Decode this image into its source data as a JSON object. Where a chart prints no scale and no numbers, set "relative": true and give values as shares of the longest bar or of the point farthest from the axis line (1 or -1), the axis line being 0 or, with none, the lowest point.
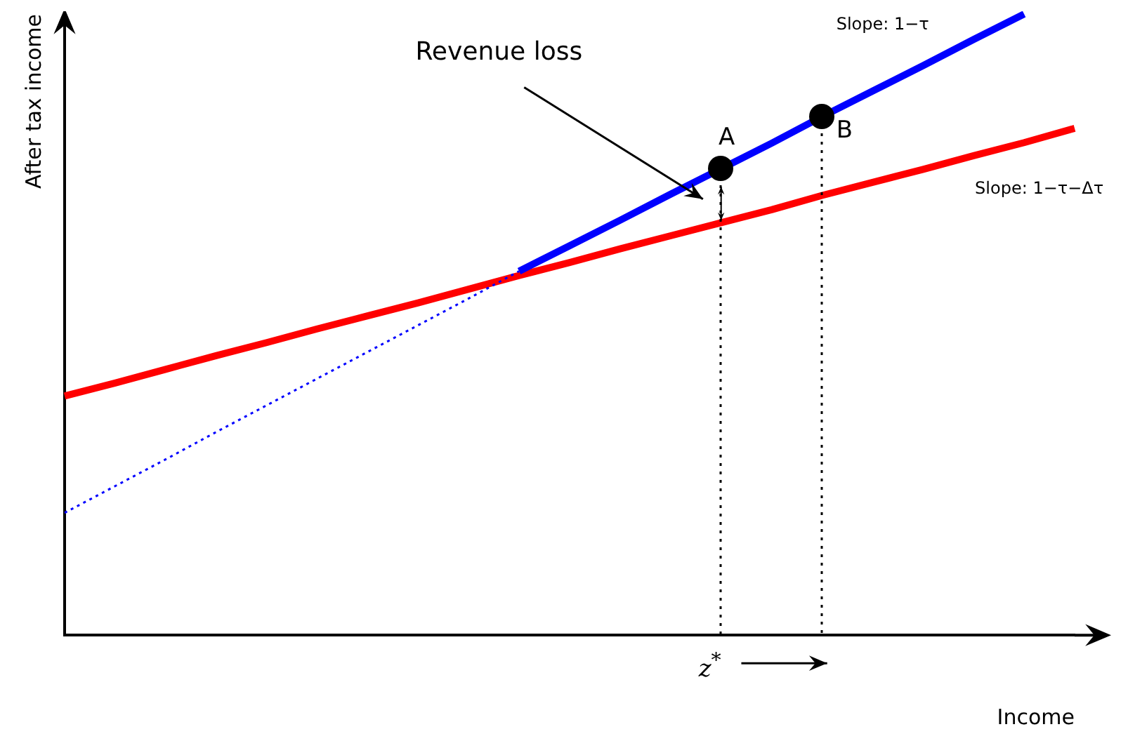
{
  "chart_data": {
    "type": "line",
    "relative": true,
    "legend": false,
    "xlabel": "Income",
    "ylabel": "After tax income",
    "categories": [
      null,
      null,
      null,
      null,
      null,
      null,
      null,
      null,
      null,
      null,
      null,
      null,
      null,
      null,
      null,
      null,
      null,
      null,
      null,
      null,
      null
    ],
    "series": [
      {
        "color": "#0000ff",
        "values": [
          null,
          null,
          null,
          null,
          null,
          null,
          null,
          null,
          null,
          0.586,
          0.627,
          0.668,
          0.71,
          0.751,
          0.792,
          0.835,
          0.876,
          0.917,
          0.959,
          1,
          null
        ]
      },
      {
        "color": "#0000ff",
        "line_style": "dotted",
        "values": [
          0.197,
          0.24,
          0.283,
          0.327,
          0.37,
          0.413,
          0.456,
          0.499,
          0.542,
          0.586,
          null,
          null,
          null,
          null,
          null,
          null,
          null,
          null,
          null,
          null,
          null
        ]
      },
      {
        "color": "#ff0000",
        "values": [
          0.385,
          0.406,
          0.428,
          0.45,
          0.471,
          0.493,
          0.514,
          0.535,
          0.557,
          0.579,
          0.6,
          0.622,
          0.643,
          0.664,
          0.685,
          0.708,
          0.729,
          0.75,
          0.772,
          0.793,
          0.816
        ]
      }
    ],
    "annotations": [
      "Revenue loss",
      "Slope: 1−τ",
      "Slope: 1−τ−Δτ",
      "z$^{*}$",
      {
        "text": "A",
        "y": 0.751
      },
      {
        "text": "B",
        "y": 0.835
      }
    ]
  }
}
